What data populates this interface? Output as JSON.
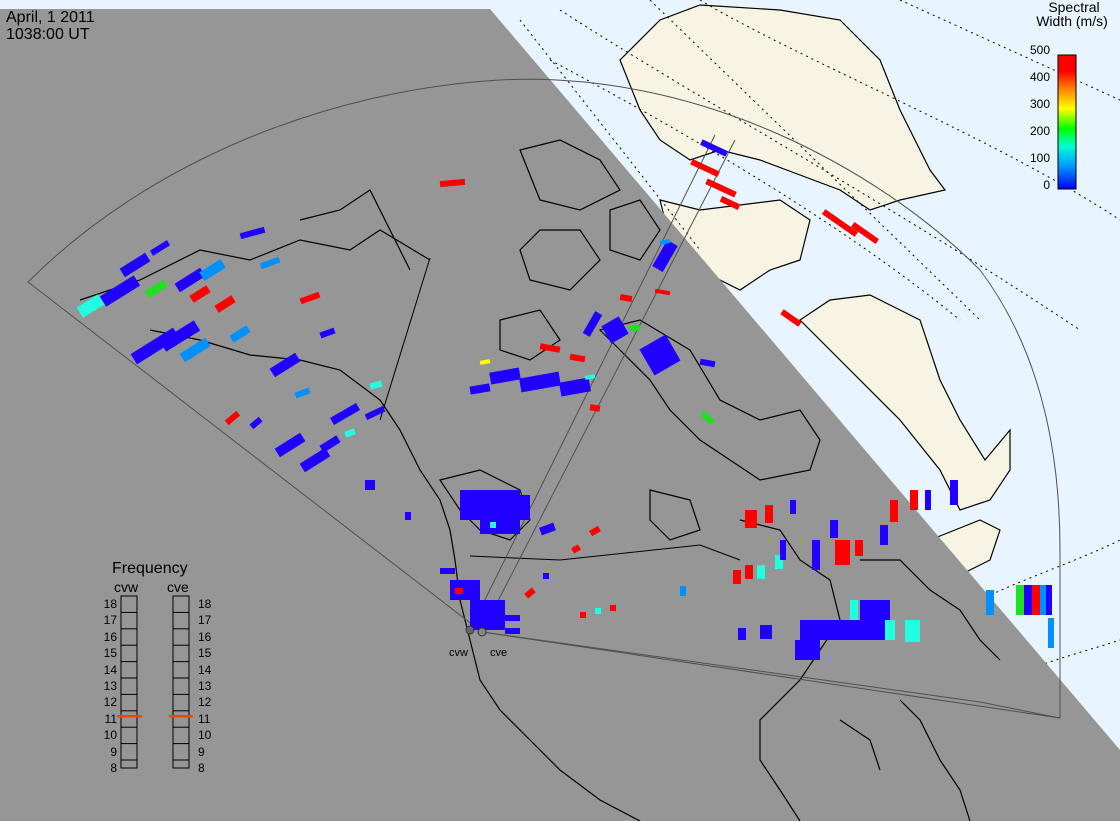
{
  "header": {
    "date": "April, 1 2011",
    "time": "1038:00 UT"
  },
  "colorbar": {
    "title_line1": "Spectral",
    "title_line2": "Width (m/s)",
    "ticks": [
      "500",
      "400",
      "300",
      "200",
      "100",
      "0"
    ],
    "range": [
      0,
      500
    ],
    "colors": [
      "#0000ff",
      "#00a0ff",
      "#00ffd0",
      "#00ff00",
      "#ffff00",
      "#ff8000",
      "#ff0000"
    ]
  },
  "frequency_panel": {
    "title": "Frequency",
    "radars": [
      "cvw",
      "cve"
    ],
    "ticks": [
      "18",
      "17",
      "16",
      "15",
      "14",
      "13",
      "12",
      "11",
      "10",
      "9",
      "8"
    ],
    "current_mhz": {
      "cvw": 10.8,
      "cve": 10.8
    },
    "marker_color": "#ff4000"
  },
  "radars": [
    {
      "code": "cvw",
      "label": "cvw"
    },
    {
      "code": "cve",
      "label": "cve"
    }
  ],
  "colors": {
    "night": "#969696",
    "ocean_day": "#e8f4ff",
    "land_day": "#f8f4e4",
    "coast": "#000000",
    "fov": "#505050"
  }
}
